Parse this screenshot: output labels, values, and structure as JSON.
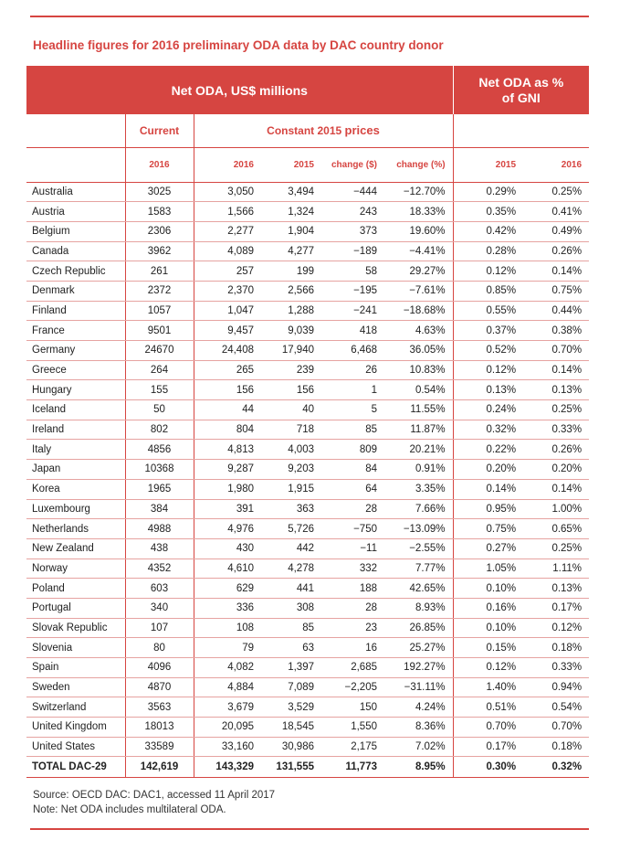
{
  "title": "Headline figures for 2016 preliminary ODA data by DAC country donor",
  "header": {
    "net_oda": "Net ODA, US$ millions",
    "gni_line1": "Net ODA as %",
    "gni_line2": "of GNI",
    "current": "Current",
    "constant_prefix": "Constant 2015",
    "constant_suffix": "prices",
    "years": {
      "cur_2016": "2016",
      "c_2016": "2016",
      "c_2015": "2015",
      "chg_usd": "change ($)",
      "chg_pct": "change (%)",
      "gni_2015": "2015",
      "gni_2016": "2016"
    }
  },
  "rows": [
    [
      "Australia",
      "3025",
      "3,050",
      "3,494",
      "−444",
      "−12.70%",
      "0.29%",
      "0.25%"
    ],
    [
      "Austria",
      "1583",
      "1,566",
      "1,324",
      "243",
      "18.33%",
      "0.35%",
      "0.41%"
    ],
    [
      "Belgium",
      "2306",
      "2,277",
      "1,904",
      "373",
      "19.60%",
      "0.42%",
      "0.49%"
    ],
    [
      "Canada",
      "3962",
      "4,089",
      "4,277",
      "−189",
      "−4.41%",
      "0.28%",
      "0.26%"
    ],
    [
      "Czech Republic",
      "261",
      "257",
      "199",
      "58",
      "29.27%",
      "0.12%",
      "0.14%"
    ],
    [
      "Denmark",
      "2372",
      "2,370",
      "2,566",
      "−195",
      "−7.61%",
      "0.85%",
      "0.75%"
    ],
    [
      "Finland",
      "1057",
      "1,047",
      "1,288",
      "−241",
      "−18.68%",
      "0.55%",
      "0.44%"
    ],
    [
      "France",
      "9501",
      "9,457",
      "9,039",
      "418",
      "4.63%",
      "0.37%",
      "0.38%"
    ],
    [
      "Germany",
      "24670",
      "24,408",
      "17,940",
      "6,468",
      "36.05%",
      "0.52%",
      "0.70%"
    ],
    [
      "Greece",
      "264",
      "265",
      "239",
      "26",
      "10.83%",
      "0.12%",
      "0.14%"
    ],
    [
      "Hungary",
      "155",
      "156",
      "156",
      "1",
      "0.54%",
      "0.13%",
      "0.13%"
    ],
    [
      "Iceland",
      "50",
      "44",
      "40",
      "5",
      "11.55%",
      "0.24%",
      "0.25%"
    ],
    [
      "Ireland",
      "802",
      "804",
      "718",
      "85",
      "11.87%",
      "0.32%",
      "0.33%"
    ],
    [
      "Italy",
      "4856",
      "4,813",
      "4,003",
      "809",
      "20.21%",
      "0.22%",
      "0.26%"
    ],
    [
      "Japan",
      "10368",
      "9,287",
      "9,203",
      "84",
      "0.91%",
      "0.20%",
      "0.20%"
    ],
    [
      "Korea",
      "1965",
      "1,980",
      "1,915",
      "64",
      "3.35%",
      "0.14%",
      "0.14%"
    ],
    [
      "Luxembourg",
      "384",
      "391",
      "363",
      "28",
      "7.66%",
      "0.95%",
      "1.00%"
    ],
    [
      "Netherlands",
      "4988",
      "4,976",
      "5,726",
      "−750",
      "−13.09%",
      "0.75%",
      "0.65%"
    ],
    [
      "New Zealand",
      "438",
      "430",
      "442",
      "−11",
      "−2.55%",
      "0.27%",
      "0.25%"
    ],
    [
      "Norway",
      "4352",
      "4,610",
      "4,278",
      "332",
      "7.77%",
      "1.05%",
      "1.11%"
    ],
    [
      "Poland",
      "603",
      "629",
      "441",
      "188",
      "42.65%",
      "0.10%",
      "0.13%"
    ],
    [
      "Portugal",
      "340",
      "336",
      "308",
      "28",
      "8.93%",
      "0.16%",
      "0.17%"
    ],
    [
      "Slovak Republic",
      "107",
      "108",
      "85",
      "23",
      "26.85%",
      "0.10%",
      "0.12%"
    ],
    [
      "Slovenia",
      "80",
      "79",
      "63",
      "16",
      "25.27%",
      "0.15%",
      "0.18%"
    ],
    [
      "Spain",
      "4096",
      "4,082",
      "1,397",
      "2,685",
      "192.27%",
      "0.12%",
      "0.33%"
    ],
    [
      "Sweden",
      "4870",
      "4,884",
      "7,089",
      "−2,205",
      "−31.11%",
      "1.40%",
      "0.94%"
    ],
    [
      "Switzerland",
      "3563",
      "3,679",
      "3,529",
      "150",
      "4.24%",
      "0.51%",
      "0.54%"
    ],
    [
      "United Kingdom",
      "18013",
      "20,095",
      "18,545",
      "1,550",
      "8.36%",
      "0.70%",
      "0.70%"
    ],
    [
      "United States",
      "33589",
      "33,160",
      "30,986",
      "2,175",
      "7.02%",
      "0.17%",
      "0.18%"
    ]
  ],
  "total": [
    "TOTAL DAC-29",
    "142,619",
    "143,329",
    "131,555",
    "11,773",
    "8.95%",
    "0.30%",
    "0.32%"
  ],
  "notes": {
    "source": "Source: OECD DAC: DAC1, accessed 11 April 2017",
    "note": "Note: Net ODA includes multilateral ODA."
  },
  "colors": {
    "accent": "#d64541",
    "row_rule": "#e6a3a1"
  }
}
